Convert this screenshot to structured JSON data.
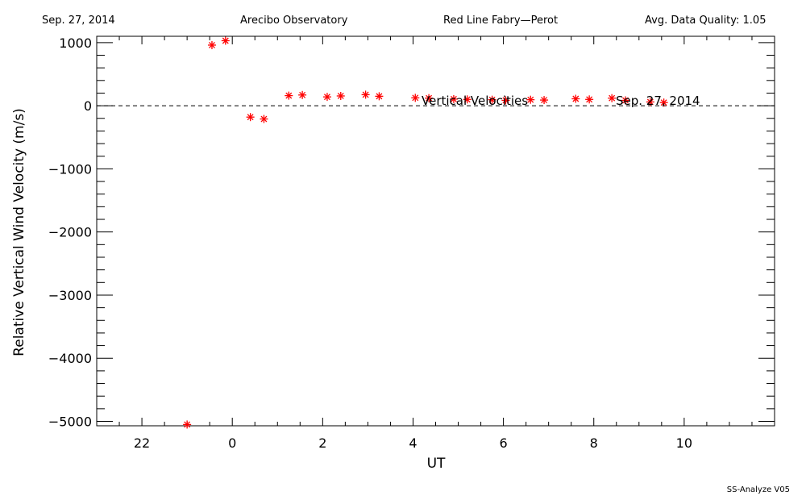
{
  "header": {
    "date": "Sep. 27, 2014",
    "observatory": "Arecibo Observatory",
    "instrument": "Red Line Fabry—Perot",
    "quality": "Avg. Data Quality: 1.05"
  },
  "footer": {
    "version": "SS-Analyze V05"
  },
  "chart_data": {
    "type": "scatter",
    "title": "",
    "xlabel": "UT",
    "ylabel": "Relative Vertical Wind Velocity (m/s)",
    "xlim": [
      21.0,
      36.0
    ],
    "ylim": [
      -5070,
      1100
    ],
    "x_ticks": [
      {
        "x": 22,
        "label": "22"
      },
      {
        "x": 24,
        "label": "0"
      },
      {
        "x": 26,
        "label": "2"
      },
      {
        "x": 28,
        "label": "4"
      },
      {
        "x": 30,
        "label": "6"
      },
      {
        "x": 32,
        "label": "8"
      },
      {
        "x": 34,
        "label": "10"
      }
    ],
    "y_ticks": [
      1000,
      0,
      -1000,
      -2000,
      -3000,
      -4000,
      -5000
    ],
    "y_tick_labels": [
      "1000",
      "0",
      "−1000",
      "−2000",
      "−3000",
      "−4000",
      "−5000"
    ],
    "annotations": [
      "Vertical Velocities",
      "Sep. 27, 2014"
    ],
    "reference_line": {
      "y": 0,
      "style": "dashed"
    },
    "colors": {
      "points": "#ff0000",
      "axes": "#000000"
    },
    "series": [
      {
        "x": [
          23.0,
          23.55,
          23.85,
          24.4,
          24.7,
          25.25,
          25.55,
          26.1,
          26.4,
          26.95,
          27.25,
          28.05,
          28.35,
          28.9,
          29.2,
          29.75,
          30.05,
          30.6,
          30.9,
          31.6,
          31.9,
          32.4,
          32.7,
          33.25,
          33.55
        ],
        "y": [
          -5050,
          960,
          1030,
          -180,
          -210,
          160,
          170,
          140,
          155,
          175,
          150,
          125,
          120,
          105,
          100,
          95,
          85,
          95,
          90,
          110,
          100,
          120,
          85,
          60,
          50
        ]
      }
    ]
  }
}
